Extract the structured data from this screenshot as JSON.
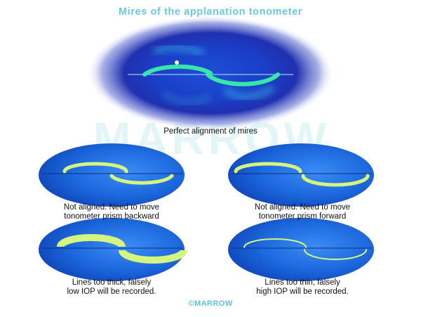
{
  "title": "Mires of the applanation tonometer",
  "watermark": "MARROW",
  "main_caption": "Perfect alignment of mires",
  "panels": [
    {
      "line1": "Not aligned. Need to move",
      "line2": "tonometer prism backward"
    },
    {
      "line1": "Not aligned. Need to move",
      "line2": "tonometer prism forward"
    },
    {
      "line1": "Lines too thick, falsely",
      "line2": "low IOP will be recorded."
    },
    {
      "line1": "Lines too thin, falsely",
      "line2": "high IOP will be recorded."
    }
  ],
  "copyright": "©MARROW",
  "colors": {
    "title": "#6cc8e0",
    "mire": "#d6f57c",
    "field": "#1f6fe0",
    "main_mire": "#38e6a8"
  }
}
